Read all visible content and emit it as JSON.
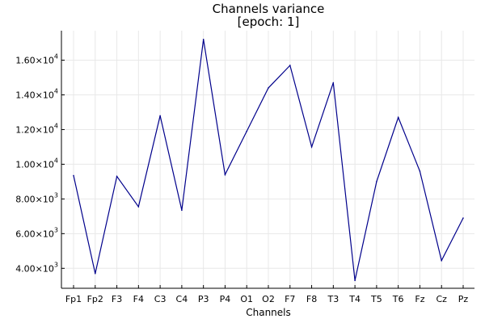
{
  "chart_data": {
    "type": "line",
    "title_line1": "Channels variance",
    "title_line2": "[epoch: 1]",
    "xlabel": "Channels",
    "ylabel": "",
    "categories": [
      "Fp1",
      "Fp2",
      "F3",
      "F4",
      "C3",
      "C4",
      "P3",
      "P4",
      "O1",
      "O2",
      "F7",
      "F8",
      "T3",
      "T4",
      "T5",
      "T6",
      "Fz",
      "Cz",
      "Pz"
    ],
    "series": [
      {
        "values": [
          9350,
          3700,
          9300,
          7550,
          12800,
          7350,
          17200,
          9400,
          11900,
          14400,
          15700,
          11000,
          14700,
          3300,
          9000,
          12700,
          9600,
          4450,
          6900
        ],
        "color": "#00008b"
      }
    ],
    "ylim": [
      2850,
      17700
    ],
    "yticks": [
      4000,
      6000,
      8000,
      10000,
      12000,
      14000,
      16000
    ],
    "ytick_labels": [
      {
        "mantissa": "4.00×10",
        "exp": "3"
      },
      {
        "mantissa": "6.00×10",
        "exp": "3"
      },
      {
        "mantissa": "8.00×10",
        "exp": "3"
      },
      {
        "mantissa": "1.00×10",
        "exp": "4"
      },
      {
        "mantissa": "1.20×10",
        "exp": "4"
      },
      {
        "mantissa": "1.40×10",
        "exp": "4"
      },
      {
        "mantissa": "1.60×10",
        "exp": "4"
      }
    ],
    "grid": true,
    "legend": "none"
  }
}
